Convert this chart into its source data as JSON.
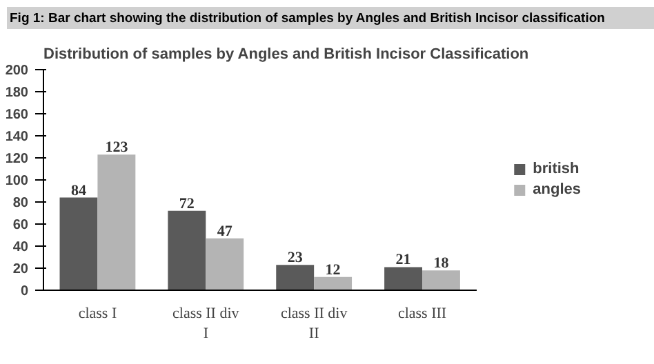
{
  "chart_data": {
    "type": "bar",
    "title": "Distribution of samples by Angles and British Incisor Classification",
    "annotations": [
      "Fig 1: Bar chart showing the distribution of samples by Angles and British Incisor classification"
    ],
    "categories": [
      "class I",
      "class II div I",
      "class II div II",
      "class III"
    ],
    "series": [
      {
        "name": "british",
        "color": "#5a5a5a",
        "values": [
          84,
          72,
          23,
          21
        ]
      },
      {
        "name": "angles",
        "color": "#b4b4b4",
        "values": [
          123,
          47,
          12,
          18
        ]
      }
    ],
    "ylim": [
      0,
      200
    ],
    "yticks": [
      0,
      20,
      40,
      60,
      80,
      100,
      120,
      140,
      160,
      180,
      200
    ],
    "data_labels": true,
    "legend": "right"
  }
}
